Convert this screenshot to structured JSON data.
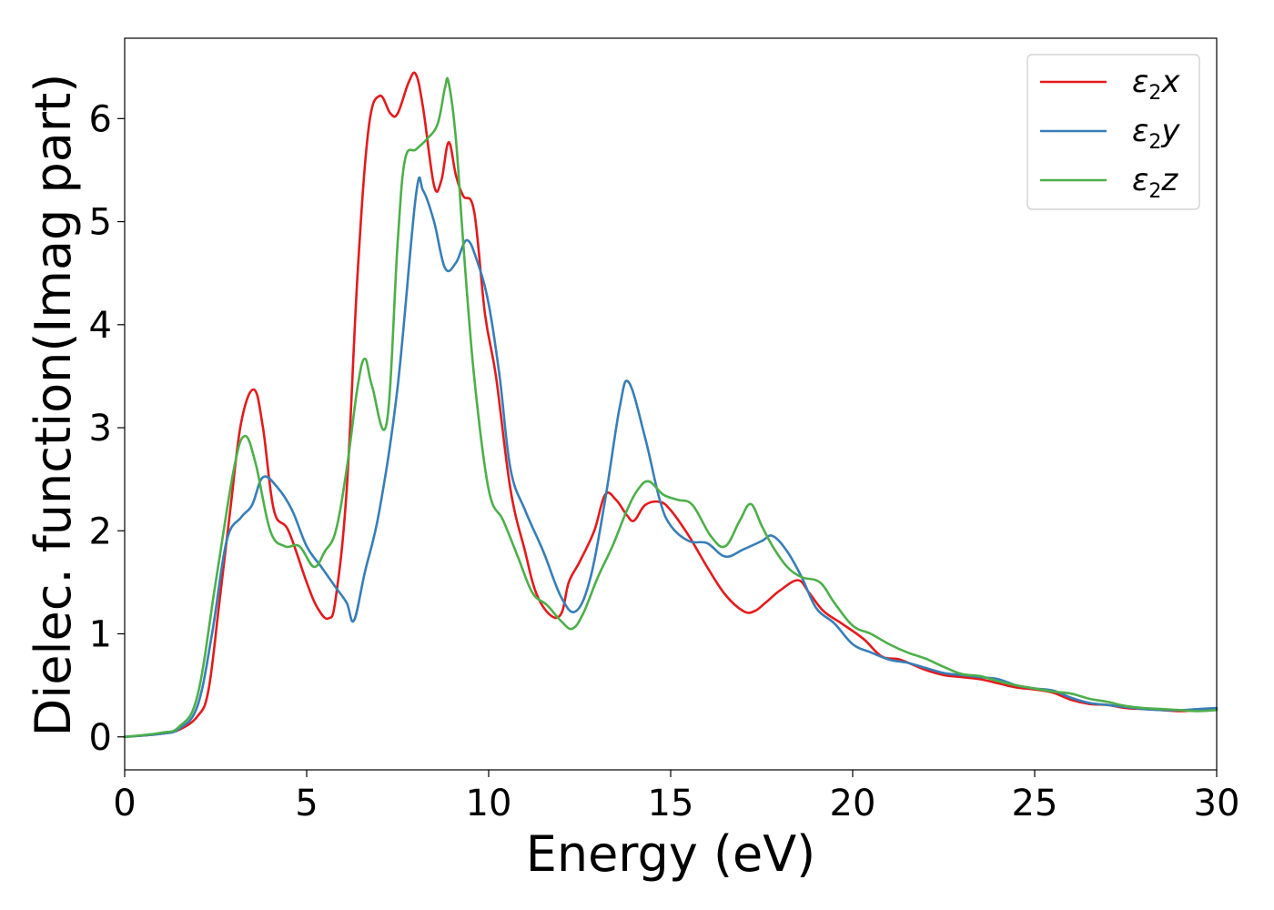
{
  "chart_data": {
    "type": "line",
    "xlabel": "Energy (eV)",
    "ylabel": "Dielec. function(Imag part)",
    "xlim": [
      0,
      30
    ],
    "ylim": [
      -0.32,
      6.78
    ],
    "xticks": [
      0,
      5,
      10,
      15,
      20,
      25,
      30
    ],
    "yticks": [
      0,
      1,
      2,
      3,
      4,
      5,
      6
    ],
    "legend_position": "top-right",
    "grid": false,
    "series": [
      {
        "name": "ε2x",
        "name_base": "ε",
        "name_sub": "2",
        "name_var": "x",
        "color": "#e41a1c",
        "x": [
          0,
          1,
          1.5,
          2,
          2.3,
          2.6,
          2.9,
          3.2,
          3.55,
          3.8,
          4.1,
          4.5,
          5,
          5.3,
          5.6,
          5.8,
          6.1,
          6.4,
          6.7,
          7,
          7.3,
          7.5,
          7.8,
          8,
          8.2,
          8.5,
          8.7,
          8.9,
          9.1,
          9.3,
          9.6,
          9.9,
          10.2,
          10.6,
          11,
          11.3,
          11.7,
          12,
          12.2,
          12.5,
          12.9,
          13.2,
          13.5,
          13.8,
          14,
          14.3,
          14.7,
          15,
          15.5,
          16,
          16.5,
          17,
          17.3,
          17.6,
          18,
          18.5,
          18.8,
          19.2,
          19.7,
          20.3,
          20.8,
          21.3,
          22,
          22.5,
          23,
          23.5,
          24,
          24.5,
          25,
          25.5,
          26,
          26.5,
          27,
          27.5,
          28,
          28.5,
          29,
          29.5,
          30
        ],
        "y": [
          0,
          0.03,
          0.07,
          0.2,
          0.45,
          1.3,
          2.2,
          3.05,
          3.37,
          3.0,
          2.2,
          2.0,
          1.5,
          1.25,
          1.15,
          1.35,
          2.4,
          4.5,
          5.9,
          6.22,
          6.05,
          6.05,
          6.35,
          6.43,
          6.1,
          5.35,
          5.4,
          5.77,
          5.45,
          5.25,
          5.1,
          4.1,
          3.5,
          2.4,
          1.8,
          1.4,
          1.18,
          1.2,
          1.5,
          1.7,
          2.0,
          2.35,
          2.3,
          2.15,
          2.1,
          2.25,
          2.28,
          2.2,
          1.95,
          1.65,
          1.38,
          1.22,
          1.22,
          1.3,
          1.42,
          1.52,
          1.4,
          1.22,
          1.1,
          0.95,
          0.78,
          0.75,
          0.65,
          0.6,
          0.58,
          0.56,
          0.52,
          0.48,
          0.46,
          0.43,
          0.36,
          0.32,
          0.31,
          0.28,
          0.27,
          0.26,
          0.25,
          0.26,
          0.27
        ]
      },
      {
        "name": "ε2y",
        "name_base": "ε",
        "name_sub": "2",
        "name_var": "y",
        "color": "#377eb8",
        "x": [
          0,
          1,
          1.5,
          2,
          2.4,
          2.8,
          3.2,
          3.5,
          3.8,
          4.2,
          4.6,
          5,
          5.4,
          5.8,
          6.1,
          6.3,
          6.6,
          7,
          7.5,
          8,
          8.2,
          8.5,
          8.8,
          9.1,
          9.4,
          9.7,
          10,
          10.3,
          10.6,
          11,
          11.5,
          12,
          12.4,
          12.8,
          13.2,
          13.6,
          13.85,
          14.3,
          14.7,
          15,
          15.5,
          16,
          16.5,
          17,
          17.5,
          17.8,
          18.2,
          18.6,
          19,
          19.5,
          20,
          20.5,
          21,
          21.5,
          22,
          22.5,
          23,
          23.5,
          24,
          24.5,
          25,
          25.5,
          26,
          26.5,
          27,
          27.5,
          28,
          28.5,
          29,
          29.5,
          30
        ],
        "y": [
          0,
          0.03,
          0.08,
          0.3,
          1.0,
          1.9,
          2.13,
          2.25,
          2.52,
          2.42,
          2.2,
          1.85,
          1.65,
          1.45,
          1.3,
          1.13,
          1.6,
          2.2,
          3.4,
          5.25,
          5.3,
          5.0,
          4.55,
          4.6,
          4.82,
          4.6,
          4.2,
          3.5,
          2.6,
          2.2,
          1.8,
          1.35,
          1.22,
          1.55,
          2.3,
          3.2,
          3.44,
          2.9,
          2.3,
          2.05,
          1.9,
          1.88,
          1.75,
          1.82,
          1.9,
          1.95,
          1.8,
          1.55,
          1.25,
          1.1,
          0.9,
          0.82,
          0.75,
          0.72,
          0.67,
          0.62,
          0.6,
          0.58,
          0.56,
          0.5,
          0.47,
          0.45,
          0.38,
          0.33,
          0.31,
          0.29,
          0.27,
          0.26,
          0.26,
          0.27,
          0.28
        ]
      },
      {
        "name": "ε2z",
        "name_base": "ε",
        "name_sub": "2",
        "name_var": "z",
        "color": "#4daf4a",
        "x": [
          0,
          1,
          1.5,
          2,
          2.5,
          3,
          3.3,
          3.6,
          4,
          4.4,
          4.8,
          5.2,
          5.5,
          5.8,
          6.1,
          6.4,
          6.6,
          6.8,
          7.2,
          7.5,
          7.7,
          8,
          8.3,
          8.6,
          8.8,
          8.9,
          9.1,
          9.3,
          9.6,
          10,
          10.4,
          10.8,
          11.2,
          11.6,
          12,
          12.3,
          12.6,
          13,
          13.4,
          13.8,
          14.1,
          14.4,
          14.8,
          15.2,
          15.6,
          16.1,
          16.5,
          16.9,
          17.2,
          17.5,
          17.8,
          18.2,
          18.6,
          19.1,
          19.5,
          20,
          20.5,
          21,
          21.5,
          22,
          22.5,
          23,
          23.5,
          24,
          24.5,
          25,
          25.5,
          26,
          26.5,
          27,
          27.5,
          28,
          28.5,
          29,
          29.5,
          30
        ],
        "y": [
          0,
          0.04,
          0.1,
          0.4,
          1.5,
          2.6,
          2.92,
          2.65,
          2.0,
          1.85,
          1.85,
          1.65,
          1.8,
          2.0,
          2.6,
          3.4,
          3.67,
          3.4,
          3.05,
          4.8,
          5.6,
          5.7,
          5.8,
          5.95,
          6.3,
          6.35,
          5.8,
          4.8,
          3.5,
          2.4,
          2.1,
          1.75,
          1.4,
          1.28,
          1.12,
          1.05,
          1.2,
          1.55,
          1.85,
          2.2,
          2.4,
          2.48,
          2.35,
          2.3,
          2.25,
          1.95,
          1.85,
          2.1,
          2.26,
          2.05,
          1.85,
          1.65,
          1.55,
          1.5,
          1.3,
          1.08,
          1.0,
          0.9,
          0.82,
          0.76,
          0.68,
          0.61,
          0.59,
          0.54,
          0.5,
          0.47,
          0.44,
          0.42,
          0.37,
          0.34,
          0.3,
          0.28,
          0.27,
          0.26,
          0.25,
          0.26
        ]
      }
    ]
  }
}
